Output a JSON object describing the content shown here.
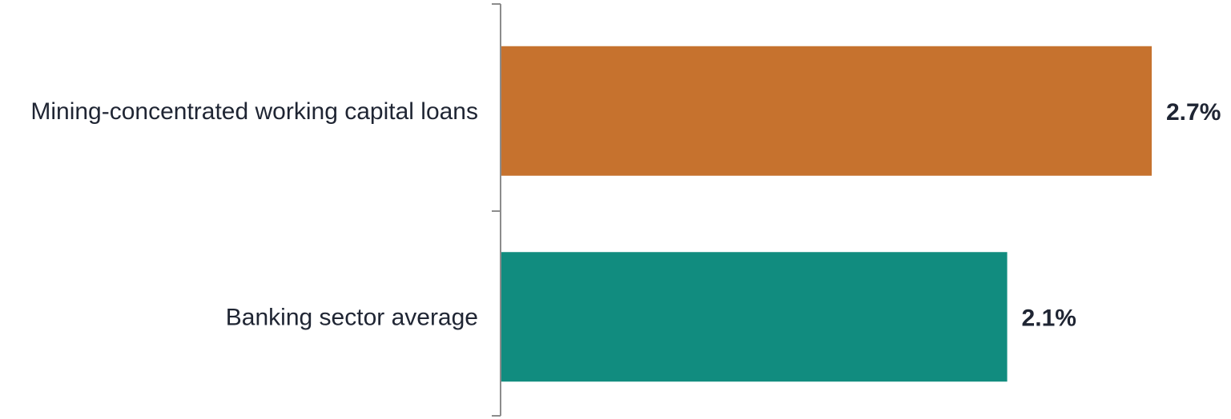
{
  "chart_data": {
    "type": "bar",
    "orientation": "horizontal",
    "categories": [
      "Mining-concentrated working capital loans",
      "Banking sector average"
    ],
    "values": [
      2.7,
      2.1
    ],
    "value_labels": [
      "2.7%",
      "2.1%"
    ],
    "colors": [
      "#c6722e",
      "#118c7f"
    ],
    "title": "",
    "xlabel": "",
    "ylabel": "",
    "xlim": [
      0,
      2.7
    ],
    "grid": false,
    "legend": "none"
  }
}
